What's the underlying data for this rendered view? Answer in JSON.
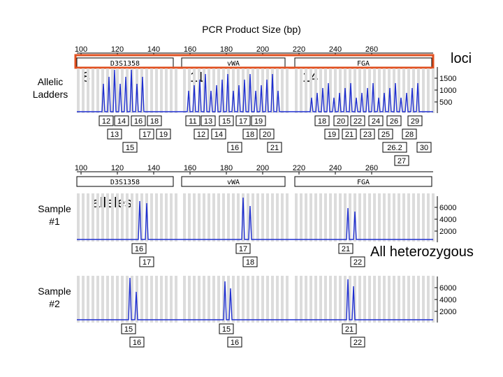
{
  "title": "PCR Product Size (bp)",
  "row_labels": {
    "allelic_ladders": "Allelic Ladders",
    "sample1": "Sample #1",
    "sample2": "Sample #2"
  },
  "annotations": {
    "loci": "loci",
    "alleles": "alleles",
    "heterozygous": "All heterozygous",
    "n8": "8",
    "n11": "11",
    "n14": "14"
  },
  "axis_ticks": [
    "100",
    "120",
    "140",
    "160",
    "180",
    "200",
    "220",
    "240",
    "260"
  ],
  "loci": [
    "D3S1358",
    "vWA",
    "FGA"
  ],
  "right_scales": {
    "ladder": [
      "1500",
      "1000",
      "500"
    ],
    "sample": [
      "6000",
      "4000",
      "2000"
    ]
  },
  "ladder_allele_rows": [
    [
      "12",
      "14",
      "16",
      "18",
      "11",
      "13",
      "15",
      "17",
      "19",
      "18",
      "20",
      "22",
      "24",
      "26",
      "29"
    ],
    [
      "13",
      "17",
      "19",
      "12",
      "14",
      "18",
      "20",
      "19",
      "21",
      "23",
      "25",
      "28"
    ],
    [
      "15",
      "16",
      "21",
      "26.2",
      "30"
    ],
    [
      "27"
    ]
  ],
  "sample1_alleles": [
    "16",
    "17",
    "17",
    "18",
    "21",
    "22"
  ],
  "sample2_alleles": [
    "15",
    "16",
    "15",
    "16",
    "21",
    "22"
  ],
  "colors": {
    "trace": "#1f2fd0",
    "highlight": "#e05020",
    "annotation": "#c01010",
    "shade": "#dcdcdc"
  }
}
